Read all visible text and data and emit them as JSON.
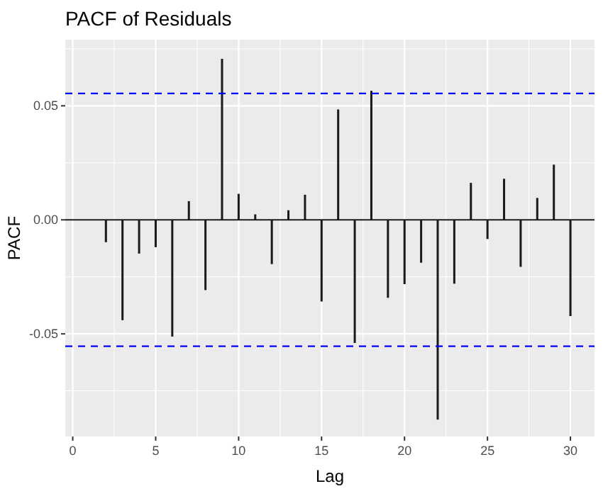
{
  "chart_data": {
    "type": "bar",
    "title": "PACF of Residuals",
    "xlabel": "Lag",
    "ylabel": "PACF",
    "x": [
      1,
      2,
      3,
      4,
      5,
      6,
      7,
      8,
      9,
      10,
      11,
      12,
      13,
      14,
      15,
      16,
      17,
      18,
      19,
      20,
      21,
      22,
      23,
      24,
      25,
      26,
      27,
      28,
      29,
      30
    ],
    "values": [
      0,
      -0.0098,
      -0.044,
      -0.0148,
      -0.012,
      -0.0512,
      0.0082,
      -0.0308,
      0.0706,
      0.0114,
      0.0024,
      -0.0194,
      0.0042,
      0.011,
      -0.0358,
      0.0484,
      -0.054,
      0.0566,
      -0.0342,
      -0.0282,
      -0.0188,
      -0.0876,
      -0.028,
      0.0162,
      -0.0084,
      0.018,
      -0.0206,
      0.0096,
      0.0242,
      -0.0422
    ],
    "color": "#1a1a1a",
    "xlim": [
      -0.45,
      31.45
    ],
    "xticks": [
      0,
      5,
      10,
      15,
      20,
      25,
      30
    ],
    "ylim": [
      -0.095,
      0.079
    ],
    "yticks": [
      {
        "value": -0.05,
        "label": "-0.05"
      },
      {
        "value": 0,
        "label": "0.00"
      },
      {
        "value": 0.05,
        "label": "0.05"
      }
    ],
    "grid": true,
    "ref_lines": [
      {
        "axis": "y",
        "value": 0.0554,
        "color": "#0000ff",
        "line_style": "dashed"
      },
      {
        "axis": "y",
        "value": -0.0554,
        "color": "#0000ff",
        "line_style": "dashed"
      }
    ]
  }
}
